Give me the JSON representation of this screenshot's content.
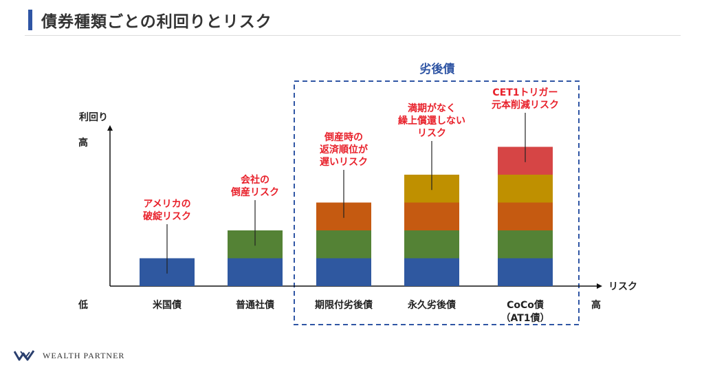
{
  "header": {
    "title": "債券種類ごとの利回りとリスク"
  },
  "footer": {
    "brand": "WEALTH PARTNER"
  },
  "chart_data": {
    "type": "bar",
    "stacked": true,
    "ylabel": "利回り",
    "xlabel": "リスク",
    "y_axis_high": "高",
    "x_axis_low": "低",
    "x_axis_high": "高",
    "group_label": "劣後債",
    "categories": [
      [
        "米国債"
      ],
      [
        "普通社債"
      ],
      [
        "期限付劣後債"
      ],
      [
        "永久劣後債"
      ],
      [
        "CoCo債",
        "（AT1債）"
      ]
    ],
    "series": [
      {
        "color": "#2f58a0",
        "values": [
          1,
          1,
          1,
          1,
          1
        ]
      },
      {
        "color": "#548235",
        "values": [
          0,
          1,
          1,
          1,
          1
        ]
      },
      {
        "color": "#c55a11",
        "values": [
          0,
          0,
          1,
          1,
          1
        ]
      },
      {
        "color": "#bf9000",
        "values": [
          0,
          0,
          0,
          1,
          1
        ]
      },
      {
        "color": "#d64545",
        "values": [
          0,
          0,
          0,
          0,
          1
        ]
      }
    ],
    "annotations": [
      [
        "アメリカの",
        "破綻リスク"
      ],
      [
        "会社の",
        "倒産リスク"
      ],
      [
        "倒産時の",
        "返済順位が",
        "遅いリスク"
      ],
      [
        "満期がなく",
        "繰上償還しない",
        "リスク"
      ],
      [
        "CET1トリガー",
        "元本削減リスク"
      ]
    ],
    "annotation_color": "#e8212b"
  }
}
